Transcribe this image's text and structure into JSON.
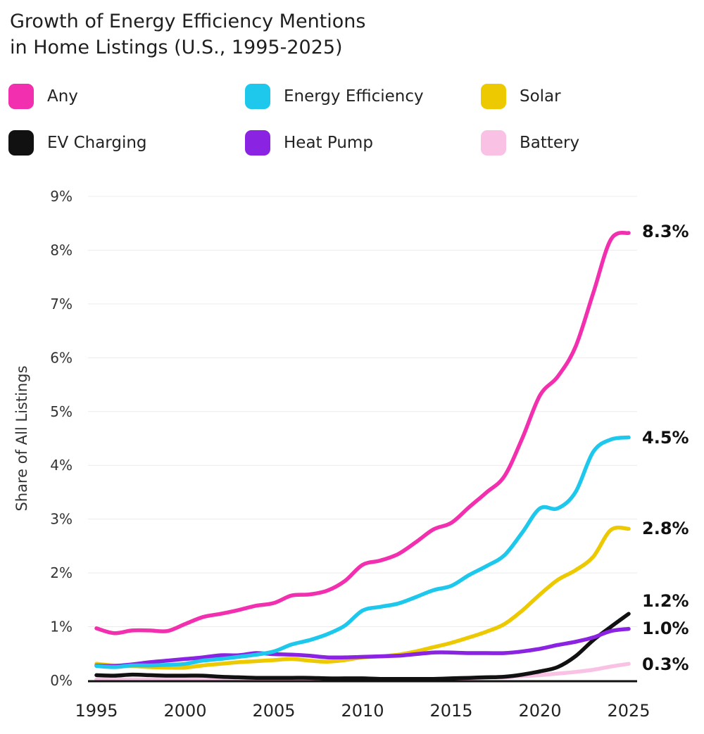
{
  "chart_data": {
    "type": "line",
    "title_lines": [
      "Growth of Energy Efficiency Mentions",
      "in Home Listings (U.S., 1995-2025)"
    ],
    "ylabel": "Share of All Listings",
    "xlabel": "",
    "xlim": [
      1995,
      2025
    ],
    "ylim": [
      0,
      9
    ],
    "x_ticks": [
      1995,
      2000,
      2005,
      2010,
      2015,
      2020,
      2025
    ],
    "y_ticks": [
      {
        "value": 0,
        "label": "0%"
      },
      {
        "value": 1,
        "label": "1%"
      },
      {
        "value": 2,
        "label": "2%"
      },
      {
        "value": 3,
        "label": "3%"
      },
      {
        "value": 4,
        "label": "4%"
      },
      {
        "value": 5,
        "label": "5%"
      },
      {
        "value": 6,
        "label": "6%"
      },
      {
        "value": 7,
        "label": "7%"
      },
      {
        "value": 8,
        "label": "8%"
      },
      {
        "value": 9,
        "label": "9%"
      }
    ],
    "grid": "horizontal",
    "legend_position": "top",
    "series": [
      {
        "name": "Any",
        "color": "#f22fae",
        "end_label": "8.3%",
        "x": [
          1995,
          1996,
          1997,
          1998,
          1999,
          2000,
          2001,
          2002,
          2003,
          2004,
          2005,
          2006,
          2007,
          2008,
          2009,
          2010,
          2011,
          2012,
          2013,
          2014,
          2015,
          2016,
          2017,
          2018,
          2019,
          2020,
          2021,
          2022,
          2023,
          2024,
          2025
        ],
        "y": [
          0.97,
          0.88,
          0.93,
          0.93,
          0.92,
          1.05,
          1.18,
          1.24,
          1.31,
          1.39,
          1.44,
          1.58,
          1.6,
          1.67,
          1.85,
          2.15,
          2.23,
          2.35,
          2.57,
          2.81,
          2.93,
          3.22,
          3.5,
          3.8,
          4.5,
          5.3,
          5.65,
          6.2,
          7.2,
          8.2,
          8.32
        ]
      },
      {
        "name": "Energy Efficiency",
        "color": "#1dc8ec",
        "end_label": "4.5%",
        "x": [
          1995,
          1996,
          1997,
          1998,
          1999,
          2000,
          2001,
          2002,
          2003,
          2004,
          2005,
          2006,
          2007,
          2008,
          2009,
          2010,
          2011,
          2012,
          2013,
          2014,
          2015,
          2016,
          2017,
          2018,
          2019,
          2020,
          2021,
          2022,
          2023,
          2024,
          2025
        ],
        "y": [
          0.27,
          0.25,
          0.28,
          0.28,
          0.29,
          0.31,
          0.37,
          0.4,
          0.44,
          0.48,
          0.54,
          0.67,
          0.75,
          0.86,
          1.02,
          1.3,
          1.37,
          1.43,
          1.55,
          1.68,
          1.76,
          1.96,
          2.13,
          2.33,
          2.75,
          3.2,
          3.2,
          3.5,
          4.25,
          4.48,
          4.52
        ]
      },
      {
        "name": "Solar",
        "color": "#ecc900",
        "end_label": "2.8%",
        "x": [
          1995,
          1996,
          1997,
          1998,
          1999,
          2000,
          2001,
          2002,
          2003,
          2004,
          2005,
          2006,
          2007,
          2008,
          2009,
          2010,
          2011,
          2012,
          2013,
          2014,
          2015,
          2016,
          2017,
          2018,
          2019,
          2020,
          2021,
          2022,
          2023,
          2024,
          2025
        ],
        "y": [
          0.31,
          0.28,
          0.27,
          0.25,
          0.24,
          0.24,
          0.28,
          0.31,
          0.34,
          0.36,
          0.38,
          0.4,
          0.37,
          0.35,
          0.38,
          0.43,
          0.45,
          0.48,
          0.54,
          0.62,
          0.7,
          0.8,
          0.91,
          1.05,
          1.3,
          1.6,
          1.87,
          2.05,
          2.3,
          2.8,
          2.82
        ]
      },
      {
        "name": "EV Charging",
        "color": "#111111",
        "end_label": "1.2%",
        "x": [
          1995,
          1996,
          1997,
          1998,
          1999,
          2000,
          2001,
          2002,
          2003,
          2004,
          2005,
          2006,
          2007,
          2008,
          2009,
          2010,
          2011,
          2012,
          2013,
          2014,
          2015,
          2016,
          2017,
          2018,
          2019,
          2020,
          2021,
          2022,
          2023,
          2024,
          2025
        ],
        "y": [
          0.1,
          0.09,
          0.11,
          0.1,
          0.09,
          0.09,
          0.09,
          0.07,
          0.06,
          0.05,
          0.05,
          0.05,
          0.05,
          0.04,
          0.04,
          0.04,
          0.03,
          0.03,
          0.03,
          0.03,
          0.04,
          0.05,
          0.06,
          0.07,
          0.11,
          0.17,
          0.25,
          0.45,
          0.75,
          1.0,
          1.24
        ]
      },
      {
        "name": "Heat Pump",
        "color": "#8a23e2",
        "end_label": "1.0%",
        "x": [
          1995,
          1996,
          1997,
          1998,
          1999,
          2000,
          2001,
          2002,
          2003,
          2004,
          2005,
          2006,
          2007,
          2008,
          2009,
          2010,
          2011,
          2012,
          2013,
          2014,
          2015,
          2016,
          2017,
          2018,
          2019,
          2020,
          2021,
          2022,
          2023,
          2024,
          2025
        ],
        "y": [
          0.28,
          0.27,
          0.3,
          0.34,
          0.37,
          0.4,
          0.43,
          0.47,
          0.47,
          0.51,
          0.49,
          0.48,
          0.46,
          0.43,
          0.43,
          0.44,
          0.45,
          0.46,
          0.49,
          0.52,
          0.52,
          0.51,
          0.51,
          0.51,
          0.54,
          0.59,
          0.66,
          0.72,
          0.8,
          0.92,
          0.96
        ]
      },
      {
        "name": "Battery",
        "color": "#f9c1e4",
        "end_label": "0.3%",
        "x": [
          1995,
          1996,
          1997,
          1998,
          1999,
          2000,
          2001,
          2002,
          2003,
          2004,
          2005,
          2006,
          2007,
          2008,
          2009,
          2010,
          2011,
          2012,
          2013,
          2014,
          2015,
          2016,
          2017,
          2018,
          2019,
          2020,
          2021,
          2022,
          2023,
          2024,
          2025
        ],
        "y": [
          0.02,
          0.02,
          0.02,
          0.02,
          0.02,
          0.02,
          0.02,
          0.02,
          0.02,
          0.02,
          0.02,
          0.02,
          0.02,
          0.02,
          0.02,
          0.02,
          0.02,
          0.02,
          0.02,
          0.02,
          0.03,
          0.04,
          0.05,
          0.06,
          0.08,
          0.1,
          0.13,
          0.16,
          0.2,
          0.26,
          0.31
        ]
      }
    ]
  }
}
